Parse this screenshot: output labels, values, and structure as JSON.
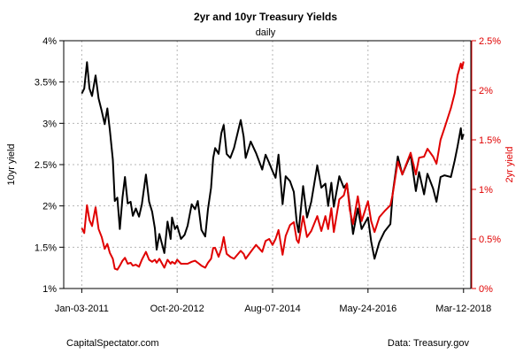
{
  "chart_data": {
    "type": "line",
    "title": "2yr and 10yr Treasury Yields",
    "subtitle": "daily",
    "ylabel_left": "10yr yield",
    "ylabel_right": "2yr yield",
    "source_left": "CapitalSpectator.com",
    "source_right": "Data: Treasury.gov",
    "xlim": [
      "2010-09-01",
      "2018-05-01"
    ],
    "ylim_left": [
      1,
      4
    ],
    "ylim_right": [
      0,
      2.5
    ],
    "x_ticks": [
      {
        "date": "2011-01-03",
        "label": "Jan-03-2011"
      },
      {
        "date": "2012-10-20",
        "label": "Oct-20-2012"
      },
      {
        "date": "2014-08-07",
        "label": "Aug-07-2014"
      },
      {
        "date": "2016-05-24",
        "label": "May-24-2016"
      },
      {
        "date": "2018-03-12",
        "label": "Mar-12-2018"
      }
    ],
    "y_ticks_left": [
      {
        "value": 1,
        "label": "1%"
      },
      {
        "value": 1.5,
        "label": "1.5%"
      },
      {
        "value": 2,
        "label": "2%"
      },
      {
        "value": 2.5,
        "label": "2.5%"
      },
      {
        "value": 3,
        "label": "3%"
      },
      {
        "value": 3.5,
        "label": "3.5%"
      },
      {
        "value": 4,
        "label": "4%"
      }
    ],
    "y_ticks_right": [
      {
        "value": 0,
        "label": "0%"
      },
      {
        "value": 0.5,
        "label": "0.5%"
      },
      {
        "value": 1,
        "label": "1%"
      },
      {
        "value": 1.5,
        "label": "1.5%"
      },
      {
        "value": 2,
        "label": "2%"
      },
      {
        "value": 2.5,
        "label": "2.5%"
      }
    ],
    "grid": true,
    "series": [
      {
        "axis": "left",
        "color": "#000000",
        "points": [
          [
            "2011-01-03",
            3.36
          ],
          [
            "2011-01-20",
            3.42
          ],
          [
            "2011-02-08",
            3.74
          ],
          [
            "2011-02-25",
            3.42
          ],
          [
            "2011-03-15",
            3.33
          ],
          [
            "2011-04-08",
            3.58
          ],
          [
            "2011-04-29",
            3.3
          ],
          [
            "2011-05-20",
            3.15
          ],
          [
            "2011-06-10",
            2.99
          ],
          [
            "2011-06-28",
            3.18
          ],
          [
            "2011-07-15",
            2.92
          ],
          [
            "2011-08-05",
            2.56
          ],
          [
            "2011-08-18",
            2.06
          ],
          [
            "2011-09-05",
            2.1
          ],
          [
            "2011-09-22",
            1.72
          ],
          [
            "2011-10-10",
            2.1
          ],
          [
            "2011-10-27",
            2.35
          ],
          [
            "2011-11-15",
            2.03
          ],
          [
            "2011-12-05",
            2.05
          ],
          [
            "2011-12-20",
            1.88
          ],
          [
            "2012-01-10",
            1.97
          ],
          [
            "2012-02-01",
            1.87
          ],
          [
            "2012-02-20",
            2.02
          ],
          [
            "2012-03-19",
            2.38
          ],
          [
            "2012-04-10",
            2.05
          ],
          [
            "2012-05-01",
            1.93
          ],
          [
            "2012-05-20",
            1.73
          ],
          [
            "2012-06-01",
            1.47
          ],
          [
            "2012-06-20",
            1.66
          ],
          [
            "2012-07-24",
            1.43
          ],
          [
            "2012-08-15",
            1.81
          ],
          [
            "2012-09-05",
            1.6
          ],
          [
            "2012-09-15",
            1.86
          ],
          [
            "2012-10-05",
            1.72
          ],
          [
            "2012-10-20",
            1.76
          ],
          [
            "2012-11-15",
            1.6
          ],
          [
            "2012-12-10",
            1.65
          ],
          [
            "2012-12-31",
            1.76
          ],
          [
            "2013-01-28",
            2.02
          ],
          [
            "2013-02-20",
            1.96
          ],
          [
            "2013-03-11",
            2.06
          ],
          [
            "2013-04-05",
            1.71
          ],
          [
            "2013-05-01",
            1.63
          ],
          [
            "2013-05-20",
            1.96
          ],
          [
            "2013-06-10",
            2.22
          ],
          [
            "2013-06-25",
            2.58
          ],
          [
            "2013-07-08",
            2.7
          ],
          [
            "2013-08-01",
            2.63
          ],
          [
            "2013-08-20",
            2.88
          ],
          [
            "2013-09-05",
            2.98
          ],
          [
            "2013-09-25",
            2.63
          ],
          [
            "2013-10-20",
            2.58
          ],
          [
            "2013-11-15",
            2.7
          ],
          [
            "2013-12-31",
            3.04
          ],
          [
            "2014-01-20",
            2.84
          ],
          [
            "2014-02-03",
            2.58
          ],
          [
            "2014-03-10",
            2.78
          ],
          [
            "2014-04-15",
            2.64
          ],
          [
            "2014-05-28",
            2.44
          ],
          [
            "2014-06-20",
            2.62
          ],
          [
            "2014-07-15",
            2.52
          ],
          [
            "2014-08-07",
            2.42
          ],
          [
            "2014-08-28",
            2.34
          ],
          [
            "2014-09-17",
            2.62
          ],
          [
            "2014-10-15",
            2.02
          ],
          [
            "2014-11-05",
            2.36
          ],
          [
            "2014-12-05",
            2.3
          ],
          [
            "2014-12-31",
            2.17
          ],
          [
            "2015-01-20",
            1.8
          ],
          [
            "2015-02-02",
            1.68
          ],
          [
            "2015-03-05",
            2.24
          ],
          [
            "2015-04-01",
            1.86
          ],
          [
            "2015-04-30",
            2.05
          ],
          [
            "2015-06-10",
            2.49
          ],
          [
            "2015-07-08",
            2.22
          ],
          [
            "2015-08-05",
            2.27
          ],
          [
            "2015-08-24",
            2.0
          ],
          [
            "2015-09-15",
            2.28
          ],
          [
            "2015-10-02",
            1.99
          ],
          [
            "2015-11-09",
            2.36
          ],
          [
            "2015-12-10",
            2.22
          ],
          [
            "2015-12-31",
            2.27
          ],
          [
            "2016-01-20",
            2.0
          ],
          [
            "2016-02-11",
            1.66
          ],
          [
            "2016-03-15",
            1.97
          ],
          [
            "2016-04-10",
            1.72
          ],
          [
            "2016-05-24",
            1.86
          ],
          [
            "2016-06-15",
            1.57
          ],
          [
            "2016-07-08",
            1.36
          ],
          [
            "2016-08-10",
            1.56
          ],
          [
            "2016-09-15",
            1.69
          ],
          [
            "2016-10-25",
            1.78
          ],
          [
            "2016-11-10",
            2.15
          ],
          [
            "2016-12-15",
            2.6
          ],
          [
            "2017-01-15",
            2.38
          ],
          [
            "2017-03-13",
            2.62
          ],
          [
            "2017-04-18",
            2.18
          ],
          [
            "2017-05-10",
            2.41
          ],
          [
            "2017-06-14",
            2.14
          ],
          [
            "2017-07-07",
            2.39
          ],
          [
            "2017-08-15",
            2.21
          ],
          [
            "2017-09-07",
            2.05
          ],
          [
            "2017-10-05",
            2.35
          ],
          [
            "2017-11-01",
            2.37
          ],
          [
            "2017-12-15",
            2.35
          ],
          [
            "2018-01-10",
            2.55
          ],
          [
            "2018-01-30",
            2.72
          ],
          [
            "2018-02-21",
            2.94
          ],
          [
            "2018-03-01",
            2.81
          ],
          [
            "2018-03-12",
            2.87
          ]
        ]
      },
      {
        "axis": "right",
        "color": "#e00000",
        "points": [
          [
            "2011-01-03",
            0.61
          ],
          [
            "2011-01-20",
            0.56
          ],
          [
            "2011-02-08",
            0.84
          ],
          [
            "2011-02-25",
            0.69
          ],
          [
            "2011-03-15",
            0.63
          ],
          [
            "2011-04-08",
            0.82
          ],
          [
            "2011-04-29",
            0.6
          ],
          [
            "2011-05-20",
            0.52
          ],
          [
            "2011-06-10",
            0.4
          ],
          [
            "2011-06-28",
            0.45
          ],
          [
            "2011-07-15",
            0.36
          ],
          [
            "2011-08-05",
            0.3
          ],
          [
            "2011-08-18",
            0.2
          ],
          [
            "2011-09-05",
            0.19
          ],
          [
            "2011-09-22",
            0.23
          ],
          [
            "2011-10-10",
            0.28
          ],
          [
            "2011-10-27",
            0.31
          ],
          [
            "2011-11-15",
            0.25
          ],
          [
            "2011-12-05",
            0.26
          ],
          [
            "2011-12-20",
            0.23
          ],
          [
            "2012-01-10",
            0.24
          ],
          [
            "2012-02-01",
            0.22
          ],
          [
            "2012-02-20",
            0.29
          ],
          [
            "2012-03-19",
            0.37
          ],
          [
            "2012-04-10",
            0.29
          ],
          [
            "2012-05-01",
            0.27
          ],
          [
            "2012-05-20",
            0.29
          ],
          [
            "2012-06-01",
            0.26
          ],
          [
            "2012-06-20",
            0.3
          ],
          [
            "2012-07-24",
            0.21
          ],
          [
            "2012-08-15",
            0.29
          ],
          [
            "2012-09-05",
            0.25
          ],
          [
            "2012-09-15",
            0.27
          ],
          [
            "2012-10-05",
            0.25
          ],
          [
            "2012-10-20",
            0.29
          ],
          [
            "2012-11-15",
            0.25
          ],
          [
            "2012-12-10",
            0.25
          ],
          [
            "2012-12-31",
            0.25
          ],
          [
            "2013-01-28",
            0.27
          ],
          [
            "2013-02-20",
            0.28
          ],
          [
            "2013-03-11",
            0.26
          ],
          [
            "2013-04-05",
            0.23
          ],
          [
            "2013-05-01",
            0.21
          ],
          [
            "2013-05-20",
            0.26
          ],
          [
            "2013-06-10",
            0.3
          ],
          [
            "2013-06-25",
            0.41
          ],
          [
            "2013-07-08",
            0.41
          ],
          [
            "2013-08-01",
            0.32
          ],
          [
            "2013-08-20",
            0.4
          ],
          [
            "2013-09-05",
            0.52
          ],
          [
            "2013-09-25",
            0.35
          ],
          [
            "2013-10-20",
            0.32
          ],
          [
            "2013-11-15",
            0.3
          ],
          [
            "2013-12-31",
            0.38
          ],
          [
            "2014-01-20",
            0.35
          ],
          [
            "2014-02-03",
            0.3
          ],
          [
            "2014-03-10",
            0.37
          ],
          [
            "2014-04-15",
            0.44
          ],
          [
            "2014-05-28",
            0.37
          ],
          [
            "2014-06-20",
            0.48
          ],
          [
            "2014-07-15",
            0.5
          ],
          [
            "2014-08-07",
            0.44
          ],
          [
            "2014-08-28",
            0.5
          ],
          [
            "2014-09-17",
            0.59
          ],
          [
            "2014-10-15",
            0.34
          ],
          [
            "2014-11-05",
            0.53
          ],
          [
            "2014-12-05",
            0.64
          ],
          [
            "2014-12-31",
            0.67
          ],
          [
            "2015-01-20",
            0.49
          ],
          [
            "2015-02-02",
            0.46
          ],
          [
            "2015-03-05",
            0.73
          ],
          [
            "2015-04-01",
            0.52
          ],
          [
            "2015-04-30",
            0.58
          ],
          [
            "2015-06-10",
            0.73
          ],
          [
            "2015-07-08",
            0.58
          ],
          [
            "2015-08-05",
            0.73
          ],
          [
            "2015-08-24",
            0.6
          ],
          [
            "2015-09-15",
            0.81
          ],
          [
            "2015-10-02",
            0.57
          ],
          [
            "2015-11-09",
            0.9
          ],
          [
            "2015-12-10",
            0.94
          ],
          [
            "2015-12-31",
            1.06
          ],
          [
            "2016-01-20",
            0.79
          ],
          [
            "2016-02-11",
            0.65
          ],
          [
            "2016-03-15",
            0.93
          ],
          [
            "2016-04-10",
            0.68
          ],
          [
            "2016-05-24",
            0.88
          ],
          [
            "2016-06-15",
            0.68
          ],
          [
            "2016-07-08",
            0.57
          ],
          [
            "2016-08-10",
            0.72
          ],
          [
            "2016-09-15",
            0.78
          ],
          [
            "2016-10-25",
            0.84
          ],
          [
            "2016-11-10",
            0.95
          ],
          [
            "2016-12-15",
            1.28
          ],
          [
            "2017-01-15",
            1.15
          ],
          [
            "2017-03-13",
            1.37
          ],
          [
            "2017-04-18",
            1.15
          ],
          [
            "2017-05-10",
            1.32
          ],
          [
            "2017-06-14",
            1.33
          ],
          [
            "2017-07-07",
            1.41
          ],
          [
            "2017-08-15",
            1.33
          ],
          [
            "2017-09-07",
            1.26
          ],
          [
            "2017-10-05",
            1.5
          ],
          [
            "2017-11-01",
            1.62
          ],
          [
            "2017-12-15",
            1.82
          ],
          [
            "2018-01-10",
            1.97
          ],
          [
            "2018-01-30",
            2.15
          ],
          [
            "2018-02-21",
            2.27
          ],
          [
            "2018-03-01",
            2.22
          ],
          [
            "2018-03-12",
            2.29
          ]
        ]
      }
    ]
  }
}
